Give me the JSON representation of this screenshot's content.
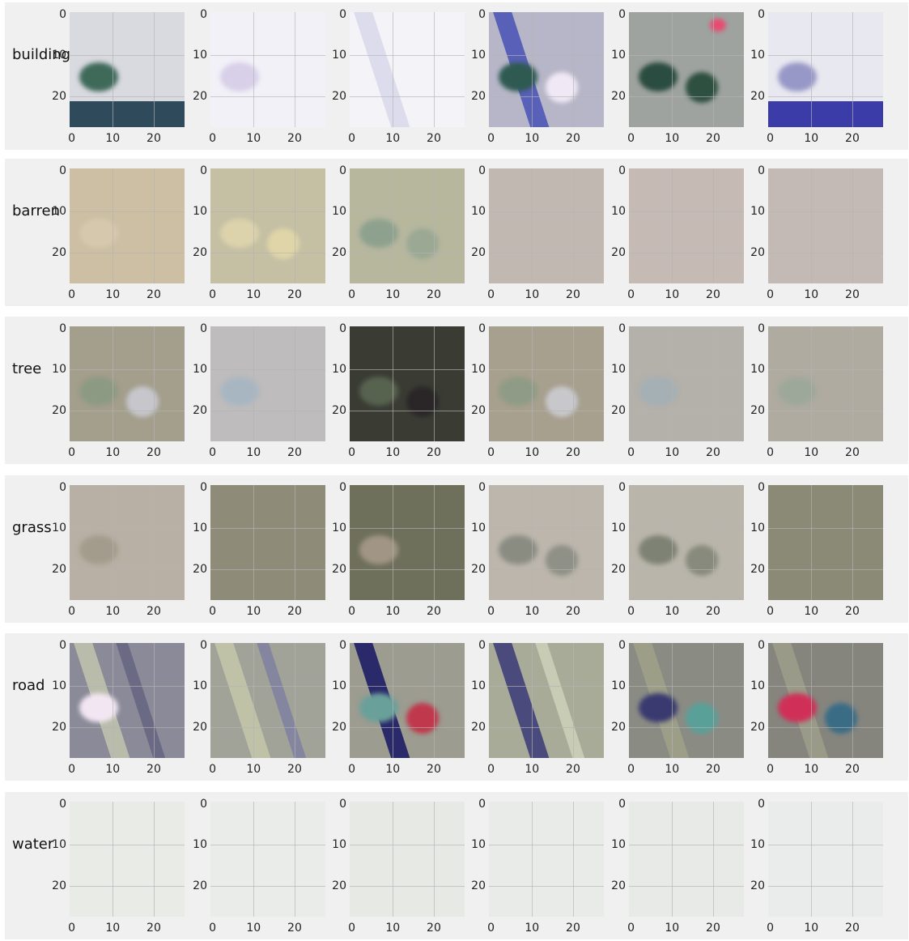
{
  "figure": {
    "axis_ticks": {
      "x": [
        "0",
        "10",
        "20"
      ],
      "y": [
        "0",
        "10",
        "20"
      ]
    },
    "rows": [
      {
        "label": "building",
        "tiles": [
          {
            "base": "#d9d9e0",
            "features": [
              {
                "kind": "band",
                "color": "#2f4a5a"
              },
              {
                "kind": "blob",
                "color": "#3f6a5a"
              }
            ]
          },
          {
            "base": "#f2f1f8",
            "features": [
              {
                "kind": "blob",
                "color": "#d8cfe8"
              }
            ]
          },
          {
            "base": "#f4f4f8",
            "features": [
              {
                "kind": "diag",
                "color": "#dcdcec"
              }
            ]
          },
          {
            "base": "#b6b6c8",
            "features": [
              {
                "kind": "diag",
                "color": "#5860b8"
              },
              {
                "kind": "blob",
                "color": "#2f5a52"
              },
              {
                "kind": "blob",
                "color": "#f0e8f4"
              }
            ]
          },
          {
            "base": "#9ea3a0",
            "features": [
              {
                "kind": "blob",
                "color": "#2b4c40"
              },
              {
                "kind": "blob",
                "color": "#2e5040"
              },
              {
                "kind": "blob",
                "color": "#e84a70"
              }
            ]
          },
          {
            "base": "#e8e8f0",
            "features": [
              {
                "kind": "band",
                "color": "#3c3ca8"
              },
              {
                "kind": "blob",
                "color": "#9898c8"
              }
            ]
          }
        ]
      },
      {
        "label": "barren",
        "tiles": [
          {
            "base": "#cdbfa4",
            "features": [
              {
                "kind": "blob",
                "color": "#d6c8ad"
              }
            ]
          },
          {
            "base": "#c5c0a4",
            "features": [
              {
                "kind": "blob",
                "color": "#dcd2ac"
              },
              {
                "kind": "blob",
                "color": "#e0d5a8"
              }
            ]
          },
          {
            "base": "#b7b79e",
            "features": [
              {
                "kind": "blob",
                "color": "#8ea18e"
              },
              {
                "kind": "blob",
                "color": "#9aa894"
              }
            ]
          },
          {
            "base": "#c2b8b2",
            "features": []
          },
          {
            "base": "#c5bab4",
            "features": []
          },
          {
            "base": "#c3bab6",
            "features": []
          }
        ]
      },
      {
        "label": "tree",
        "tiles": [
          {
            "base": "#a49e8c",
            "features": [
              {
                "kind": "blob",
                "color": "#8c9a84"
              },
              {
                "kind": "blob",
                "color": "#c6c6cc"
              }
            ]
          },
          {
            "base": "#bebcbc",
            "features": [
              {
                "kind": "blob",
                "color": "#a8b6c2"
              }
            ]
          },
          {
            "base": "#3a3c34",
            "features": [
              {
                "kind": "blob",
                "color": "#57634f"
              },
              {
                "kind": "blob",
                "color": "#2a2628"
              }
            ]
          },
          {
            "base": "#a7a08e",
            "features": [
              {
                "kind": "blob",
                "color": "#8f9b86"
              },
              {
                "kind": "blob",
                "color": "#c8c8cc"
              }
            ]
          },
          {
            "base": "#b4b0aa",
            "features": [
              {
                "kind": "blob",
                "color": "#a4b0b4"
              }
            ]
          },
          {
            "base": "#b0aba0",
            "features": [
              {
                "kind": "blob",
                "color": "#9ea89a"
              }
            ]
          }
        ]
      },
      {
        "label": "grass",
        "tiles": [
          {
            "base": "#b8b0a4",
            "features": [
              {
                "kind": "blob",
                "color": "#a39c8c"
              }
            ]
          },
          {
            "base": "#8e8b78",
            "features": []
          },
          {
            "base": "#6f705c",
            "features": [
              {
                "kind": "blob",
                "color": "#a19585"
              }
            ]
          },
          {
            "base": "#bcb6ac",
            "features": [
              {
                "kind": "blob",
                "color": "#8a8c82"
              },
              {
                "kind": "blob",
                "color": "#8f9086"
              }
            ]
          },
          {
            "base": "#bab5aa",
            "features": [
              {
                "kind": "blob",
                "color": "#7e8274"
              },
              {
                "kind": "blob",
                "color": "#878a7c"
              }
            ]
          },
          {
            "base": "#8b8a76",
            "features": []
          }
        ]
      },
      {
        "label": "road",
        "tiles": [
          {
            "base": "#8a8a98",
            "features": [
              {
                "kind": "diag",
                "color": "#b9bcaa"
              },
              {
                "kind": "diag",
                "color": "#6a6a84"
              },
              {
                "kind": "blob",
                "color": "#f2e6f2"
              }
            ]
          },
          {
            "base": "#a1a298",
            "features": [
              {
                "kind": "diag",
                "color": "#c0c2a8"
              },
              {
                "kind": "diag",
                "color": "#8486a0"
              }
            ]
          },
          {
            "base": "#9c9c90",
            "features": [
              {
                "kind": "diag",
                "color": "#2a2a6a"
              },
              {
                "kind": "blob",
                "color": "#6aa09a"
              },
              {
                "kind": "blob",
                "color": "#c0384c"
              }
            ]
          },
          {
            "base": "#a8ab98",
            "features": [
              {
                "kind": "diag",
                "color": "#4a4a7c"
              },
              {
                "kind": "diag",
                "color": "#c8ccb4"
              }
            ]
          },
          {
            "base": "#8a8c84",
            "features": [
              {
                "kind": "diag",
                "color": "#9c9e88"
              },
              {
                "kind": "blob",
                "color": "#3a3a70"
              },
              {
                "kind": "blob",
                "color": "#58a098"
              }
            ]
          },
          {
            "base": "#85857e",
            "features": [
              {
                "kind": "diag",
                "color": "#9a9a88"
              },
              {
                "kind": "blob",
                "color": "#d03058"
              },
              {
                "kind": "blob",
                "color": "#3a6c86"
              }
            ]
          }
        ]
      },
      {
        "label": "water",
        "tiles": [
          {
            "base": "#e8ebe6",
            "features": []
          },
          {
            "base": "#eaecea",
            "features": []
          },
          {
            "base": "#e6e9e4",
            "features": []
          },
          {
            "base": "#e9ebe8",
            "features": []
          },
          {
            "base": "#e7eae6",
            "features": []
          },
          {
            "base": "#eaeceb",
            "features": []
          }
        ]
      }
    ]
  }
}
